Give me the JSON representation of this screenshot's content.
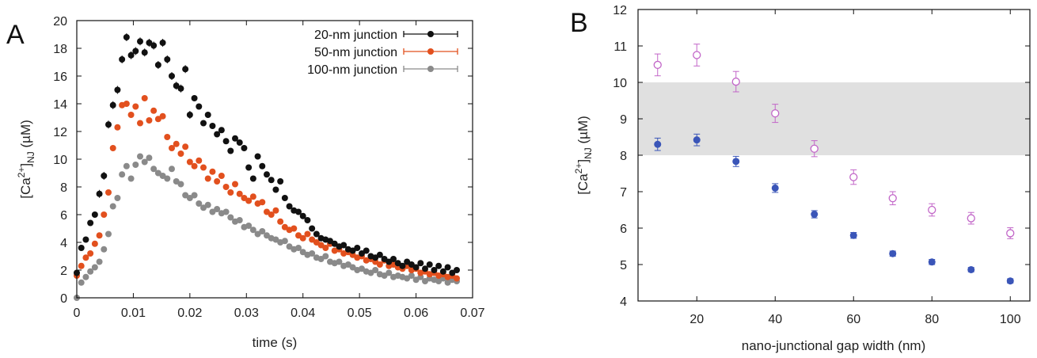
{
  "chart_data": [
    {
      "panel_label": "A",
      "type": "scatter",
      "xlabel": "time (s)",
      "ylabel": "[Ca2+]NJ (µM)",
      "ylabel_parts": {
        "main": "[Ca",
        "sup": "2+",
        "close": "]",
        "sub": "NJ",
        "unit": " (µM)"
      },
      "xlim": [
        0,
        0.07
      ],
      "ylim": [
        0,
        20
      ],
      "x_ticks": [
        "0",
        "0.01",
        "0.02",
        "0.03",
        "0.04",
        "0.05",
        "0.06",
        "0.07"
      ],
      "y_ticks": [
        "0",
        "2",
        "4",
        "6",
        "8",
        "10",
        "12",
        "14",
        "16",
        "18",
        "20"
      ],
      "legend_position": "top-right",
      "series": [
        {
          "name": "20-nm junction",
          "color": "#111111",
          "x": [
            0.0,
            0.0008,
            0.0016,
            0.0024,
            0.0032,
            0.004,
            0.0048,
            0.0056,
            0.0064,
            0.0072,
            0.008,
            0.0088,
            0.0096,
            0.0104,
            0.0112,
            0.012,
            0.0128,
            0.0136,
            0.0144,
            0.0152,
            0.016,
            0.0168,
            0.0176,
            0.0184,
            0.0192,
            0.02,
            0.0208,
            0.0216,
            0.0224,
            0.0232,
            0.024,
            0.0248,
            0.0256,
            0.0264,
            0.0272,
            0.028,
            0.0288,
            0.0296,
            0.0304,
            0.0312,
            0.032,
            0.0328,
            0.0336,
            0.0344,
            0.0352,
            0.036,
            0.0368,
            0.0376,
            0.0384,
            0.0392,
            0.04,
            0.0408,
            0.0416,
            0.0424,
            0.0432,
            0.044,
            0.0448,
            0.0456,
            0.0464,
            0.0472,
            0.048,
            0.0488,
            0.0496,
            0.0504,
            0.0512,
            0.052,
            0.0528,
            0.0536,
            0.0544,
            0.0552,
            0.056,
            0.0568,
            0.0576,
            0.0584,
            0.0592,
            0.06,
            0.0608,
            0.0616,
            0.0624,
            0.0632,
            0.064,
            0.0648,
            0.0656,
            0.0664,
            0.0672
          ],
          "y": [
            1.8,
            3.6,
            4.2,
            5.4,
            6.0,
            7.5,
            8.8,
            12.5,
            13.9,
            15.0,
            17.2,
            18.8,
            17.5,
            17.8,
            18.5,
            17.7,
            18.4,
            18.2,
            16.8,
            18.4,
            17.2,
            16.0,
            15.3,
            15.1,
            16.5,
            13.2,
            14.4,
            13.8,
            12.6,
            13.2,
            12.4,
            11.8,
            12.1,
            11.3,
            10.6,
            11.5,
            11.2,
            10.8,
            9.4,
            8.6,
            10.2,
            9.5,
            8.9,
            8.5,
            7.8,
            8.4,
            7.2,
            6.6,
            6.3,
            6.2,
            5.9,
            5.6,
            5.0,
            4.6,
            4.3,
            4.2,
            4.1,
            3.9,
            3.7,
            3.8,
            3.5,
            3.4,
            3.6,
            3.2,
            3.4,
            3.0,
            2.9,
            3.1,
            2.8,
            2.6,
            2.8,
            2.5,
            2.3,
            2.6,
            2.4,
            2.2,
            2.5,
            2.1,
            2.4,
            2.0,
            2.3,
            1.9,
            2.2,
            1.8,
            2.0
          ]
        },
        {
          "name": "50-nm junction",
          "color": "#e2501e",
          "x": [
            0.0,
            0.0008,
            0.0016,
            0.0024,
            0.0032,
            0.004,
            0.0048,
            0.0056,
            0.0064,
            0.0072,
            0.008,
            0.0088,
            0.0096,
            0.0104,
            0.0112,
            0.012,
            0.0128,
            0.0136,
            0.0144,
            0.0152,
            0.016,
            0.0168,
            0.0176,
            0.0184,
            0.0192,
            0.02,
            0.0208,
            0.0216,
            0.0224,
            0.0232,
            0.024,
            0.0248,
            0.0256,
            0.0264,
            0.0272,
            0.028,
            0.0288,
            0.0296,
            0.0304,
            0.0312,
            0.032,
            0.0328,
            0.0336,
            0.0344,
            0.0352,
            0.036,
            0.0368,
            0.0376,
            0.0384,
            0.0392,
            0.04,
            0.0408,
            0.0416,
            0.0424,
            0.0432,
            0.044,
            0.0448,
            0.0456,
            0.0464,
            0.0472,
            0.048,
            0.0488,
            0.0496,
            0.0504,
            0.0512,
            0.052,
            0.0528,
            0.0536,
            0.0544,
            0.0552,
            0.056,
            0.0568,
            0.0576,
            0.0584,
            0.0592,
            0.06,
            0.0608,
            0.0616,
            0.0624,
            0.0632,
            0.064,
            0.0648,
            0.0656,
            0.0664,
            0.0672
          ],
          "y": [
            1.6,
            2.3,
            2.9,
            3.2,
            3.9,
            4.5,
            6.0,
            7.6,
            10.8,
            12.3,
            13.9,
            14.0,
            13.2,
            13.8,
            12.6,
            14.4,
            12.8,
            13.5,
            12.9,
            13.1,
            11.6,
            10.8,
            11.1,
            10.4,
            10.9,
            9.8,
            9.5,
            9.9,
            9.4,
            8.6,
            9.1,
            8.4,
            8.8,
            8.0,
            7.6,
            8.2,
            7.5,
            7.2,
            7.0,
            7.3,
            6.8,
            6.9,
            6.2,
            6.0,
            6.3,
            5.5,
            5.1,
            4.9,
            5.0,
            4.5,
            4.3,
            4.6,
            4.2,
            4.0,
            3.8,
            3.6,
            3.9,
            3.4,
            3.5,
            3.2,
            3.3,
            3.1,
            2.9,
            3.0,
            2.7,
            2.8,
            2.6,
            2.4,
            2.7,
            2.3,
            2.4,
            2.2,
            2.1,
            2.3,
            2.0,
            2.1,
            1.8,
            1.9,
            1.7,
            1.8,
            1.6,
            1.7,
            1.5,
            1.6,
            1.4
          ]
        },
        {
          "name": "100-nm junction",
          "color": "#8a8a8a",
          "x": [
            0.0,
            0.0008,
            0.0016,
            0.0024,
            0.0032,
            0.004,
            0.0048,
            0.0056,
            0.0064,
            0.0072,
            0.008,
            0.0088,
            0.0096,
            0.0104,
            0.0112,
            0.012,
            0.0128,
            0.0136,
            0.0144,
            0.0152,
            0.016,
            0.0168,
            0.0176,
            0.0184,
            0.0192,
            0.02,
            0.0208,
            0.0216,
            0.0224,
            0.0232,
            0.024,
            0.0248,
            0.0256,
            0.0264,
            0.0272,
            0.028,
            0.0288,
            0.0296,
            0.0304,
            0.0312,
            0.032,
            0.0328,
            0.0336,
            0.0344,
            0.0352,
            0.036,
            0.0368,
            0.0376,
            0.0384,
            0.0392,
            0.04,
            0.0408,
            0.0416,
            0.0424,
            0.0432,
            0.044,
            0.0448,
            0.0456,
            0.0464,
            0.0472,
            0.048,
            0.0488,
            0.0496,
            0.0504,
            0.0512,
            0.052,
            0.0528,
            0.0536,
            0.0544,
            0.0552,
            0.056,
            0.0568,
            0.0576,
            0.0584,
            0.0592,
            0.06,
            0.0608,
            0.0616,
            0.0624,
            0.0632,
            0.064,
            0.0648,
            0.0656,
            0.0664,
            0.0672
          ],
          "y": [
            0.0,
            1.1,
            1.5,
            1.9,
            2.2,
            2.6,
            3.5,
            4.6,
            6.6,
            7.2,
            8.9,
            9.5,
            8.6,
            9.6,
            10.2,
            9.8,
            10.1,
            9.3,
            9.0,
            8.8,
            8.6,
            9.3,
            8.4,
            8.2,
            7.4,
            7.2,
            7.4,
            6.8,
            6.5,
            6.7,
            6.2,
            6.4,
            6.1,
            6.2,
            5.8,
            5.5,
            5.6,
            5.1,
            5.2,
            4.9,
            4.6,
            4.8,
            4.5,
            4.3,
            4.2,
            4.0,
            4.1,
            3.7,
            3.5,
            3.6,
            3.3,
            3.1,
            3.2,
            2.9,
            2.8,
            3.0,
            2.6,
            2.5,
            2.6,
            2.3,
            2.4,
            2.2,
            2.0,
            2.1,
            1.9,
            1.8,
            2.0,
            1.7,
            1.6,
            1.8,
            1.5,
            1.6,
            1.5,
            1.4,
            1.6,
            1.3,
            1.5,
            1.2,
            1.4,
            1.3,
            1.2,
            1.4,
            1.1,
            1.3,
            1.2
          ]
        }
      ]
    },
    {
      "panel_label": "B",
      "type": "scatter",
      "xlabel": "nano-junctional gap width (nm)",
      "ylabel": "[Ca2+]NJ (µM)",
      "ylabel_parts": {
        "main": "[Ca",
        "sup": "2+",
        "close": "]",
        "sub": "NJ",
        "unit": " (µM)"
      },
      "xlim": [
        5,
        105
      ],
      "ylim": [
        4,
        12
      ],
      "x_ticks": [
        "20",
        "40",
        "60",
        "80",
        "100"
      ],
      "y_ticks": [
        "4",
        "5",
        "6",
        "7",
        "8",
        "9",
        "10",
        "11",
        "12"
      ],
      "shaded_band": [
        8,
        10
      ],
      "shaded_band_color": "#e0e0e0",
      "series": [
        {
          "marker": "open-circle",
          "color": "#c266c8",
          "x": [
            10,
            20,
            30,
            40,
            50,
            60,
            70,
            80,
            90,
            100
          ],
          "y": [
            10.48,
            10.75,
            10.02,
            9.15,
            8.18,
            7.4,
            6.82,
            6.5,
            6.27,
            5.86
          ],
          "err": [
            0.3,
            0.3,
            0.28,
            0.25,
            0.22,
            0.2,
            0.18,
            0.17,
            0.16,
            0.15
          ]
        },
        {
          "marker": "filled-circle",
          "color": "#3a55b8",
          "x": [
            10,
            20,
            30,
            40,
            50,
            60,
            70,
            80,
            90,
            100
          ],
          "y": [
            8.3,
            8.42,
            7.83,
            7.1,
            6.38,
            5.8,
            5.3,
            5.07,
            4.86,
            4.55
          ],
          "err": [
            0.17,
            0.16,
            0.14,
            0.12,
            0.1,
            0.08,
            0.07,
            0.07,
            0.06,
            0.06
          ]
        }
      ]
    }
  ]
}
